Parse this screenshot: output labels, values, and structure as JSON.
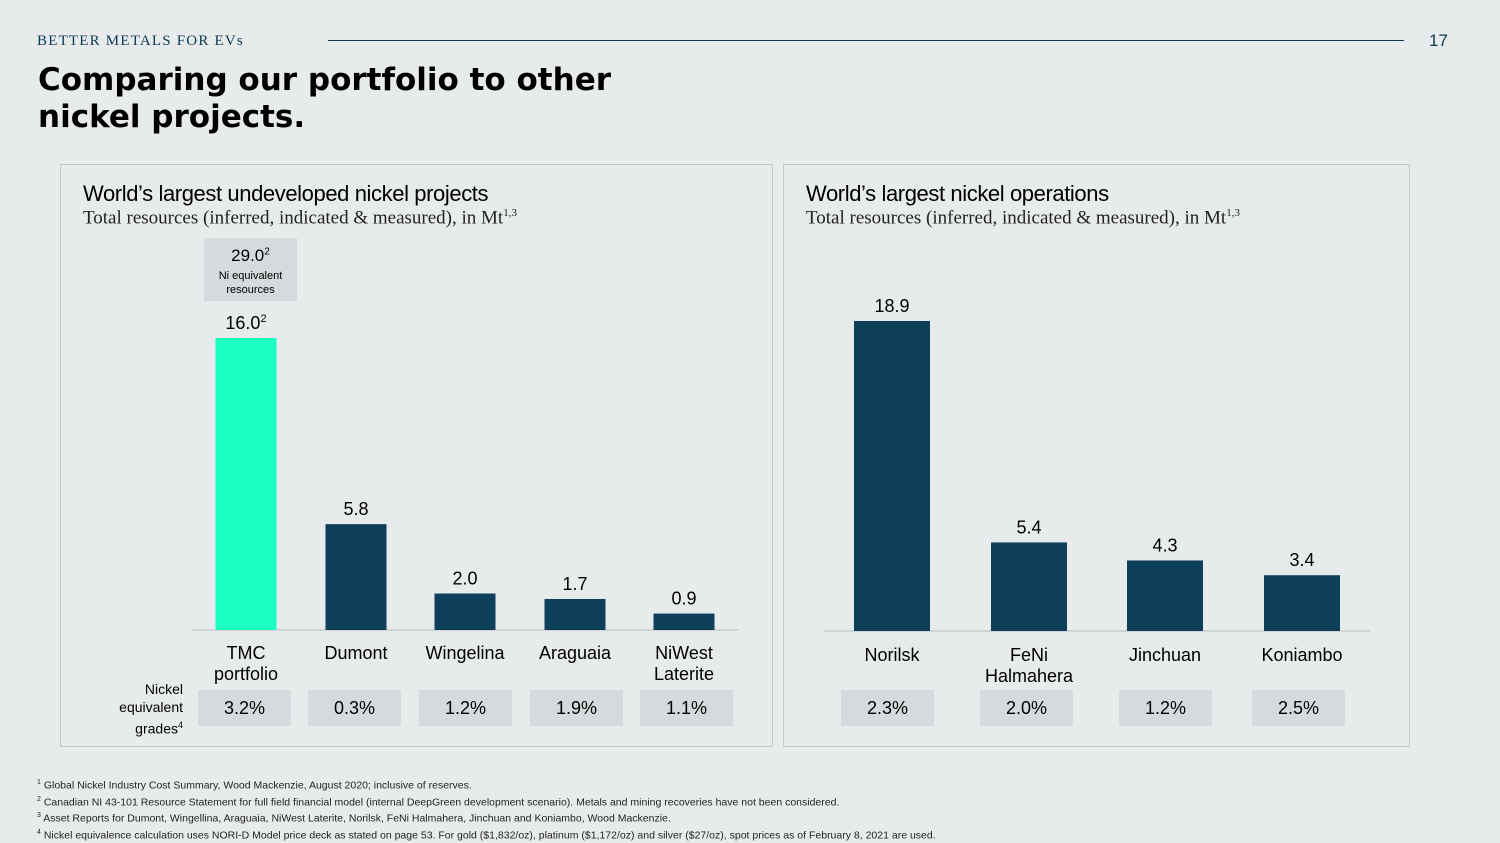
{
  "header": {
    "brand": "BETTER METALS FOR EVs",
    "page_number": "17",
    "title": "Comparing our portfolio to other nickel projects."
  },
  "colors": {
    "accent": "#1bffc3",
    "navy": "#0d3f5a",
    "grade_box": "#d6dadc"
  },
  "left_panel": {
    "title": "World’s largest undeveloped nickel projects",
    "subtitle": "Total resources (inferred, indicated & measured), in Mt",
    "subtitle_sup": "1,3",
    "callout": {
      "value": "29.0",
      "value_sup": "2",
      "label": "Ni equivalent resources"
    },
    "grades_label": "Nickel equivalent grades",
    "grades_label_sup": "4",
    "grades": [
      "3.2%",
      "0.3%",
      "1.2%",
      "1.9%",
      "1.1%"
    ]
  },
  "right_panel": {
    "title": "World’s largest nickel operations",
    "subtitle": "Total resources (inferred, indicated & measured), in Mt",
    "subtitle_sup": "1,3",
    "grades": [
      "2.3%",
      "2.0%",
      "1.2%",
      "2.5%"
    ]
  },
  "chart_data": [
    {
      "type": "bar",
      "title": "World’s largest undeveloped nickel projects",
      "subtitle": "Total resources (inferred, indicated & measured), in Mt",
      "categories": [
        "TMC portfolio",
        "Dumont",
        "Wingelina",
        "Araguaia",
        "NiWest Laterite"
      ],
      "values": [
        16.0,
        5.8,
        2.0,
        1.7,
        0.9
      ],
      "value_labels": [
        "16.0",
        "5.8",
        "2.0",
        "1.7",
        "0.9"
      ],
      "value_label_sups": [
        "2",
        "",
        "",
        "",
        ""
      ],
      "highlight_index": 0,
      "ylim": [
        0,
        16.0
      ]
    },
    {
      "type": "bar",
      "title": "World’s largest nickel operations",
      "subtitle": "Total resources (inferred, indicated & measured), in Mt",
      "categories": [
        "Norilsk",
        "FeNi Halmahera",
        "Jinchuan",
        "Koniambo"
      ],
      "values": [
        18.9,
        5.4,
        4.3,
        3.4
      ],
      "value_labels": [
        "18.9",
        "5.4",
        "4.3",
        "3.4"
      ],
      "ylim": [
        0,
        18.9
      ]
    }
  ],
  "footnotes": [
    {
      "num": "1",
      "text": "Global Nickel Industry Cost Summary, Wood Mackenzie, August 2020; inclusive of reserves."
    },
    {
      "num": "2",
      "text": "Canadian NI 43-101 Resource Statement for full field financial model (internal DeepGreen development scenario). Metals and mining recoveries have not been considered."
    },
    {
      "num": "3",
      "text": " Asset Reports for Dumont, Wingellina, Araguaia, NiWest Laterite, Norilsk, FeNi Halmahera, Jinchuan and Koniambo, Wood Mackenzie."
    },
    {
      "num": "4",
      "text": "Nickel equivalence calculation uses NORI-D Model price deck as stated on page 53. For gold ($1,832/oz), platinum ($1,172/oz) and silver ($27/oz), spot prices as of February 8, 2021 are used."
    }
  ]
}
